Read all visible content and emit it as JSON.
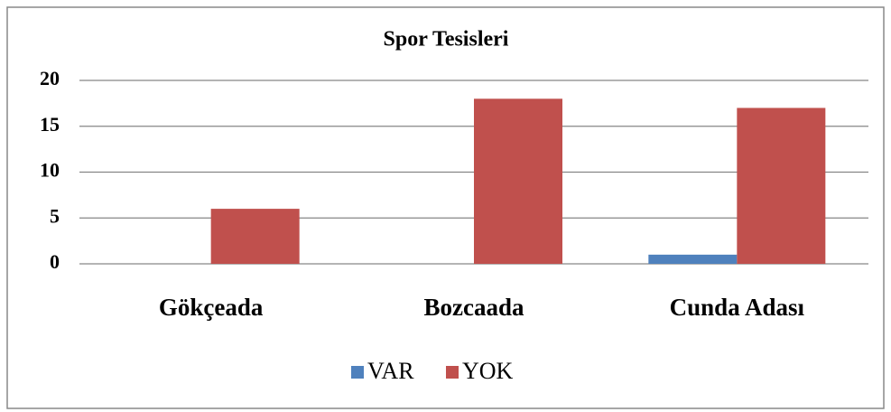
{
  "chart_data": {
    "type": "bar",
    "title": "Spor Tesisleri",
    "categories": [
      "Gökçeada",
      "Bozcaada",
      "Cunda Adası"
    ],
    "series": [
      {
        "name": "VAR",
        "color": "#4f81bd",
        "values": [
          0,
          0,
          1
        ]
      },
      {
        "name": "YOK",
        "color": "#c0504d",
        "values": [
          6,
          18,
          17
        ]
      }
    ],
    "ylim": [
      0,
      20
    ],
    "yticks": [
      0,
      5,
      10,
      15,
      20
    ],
    "grid": true,
    "legend": "bottom"
  }
}
